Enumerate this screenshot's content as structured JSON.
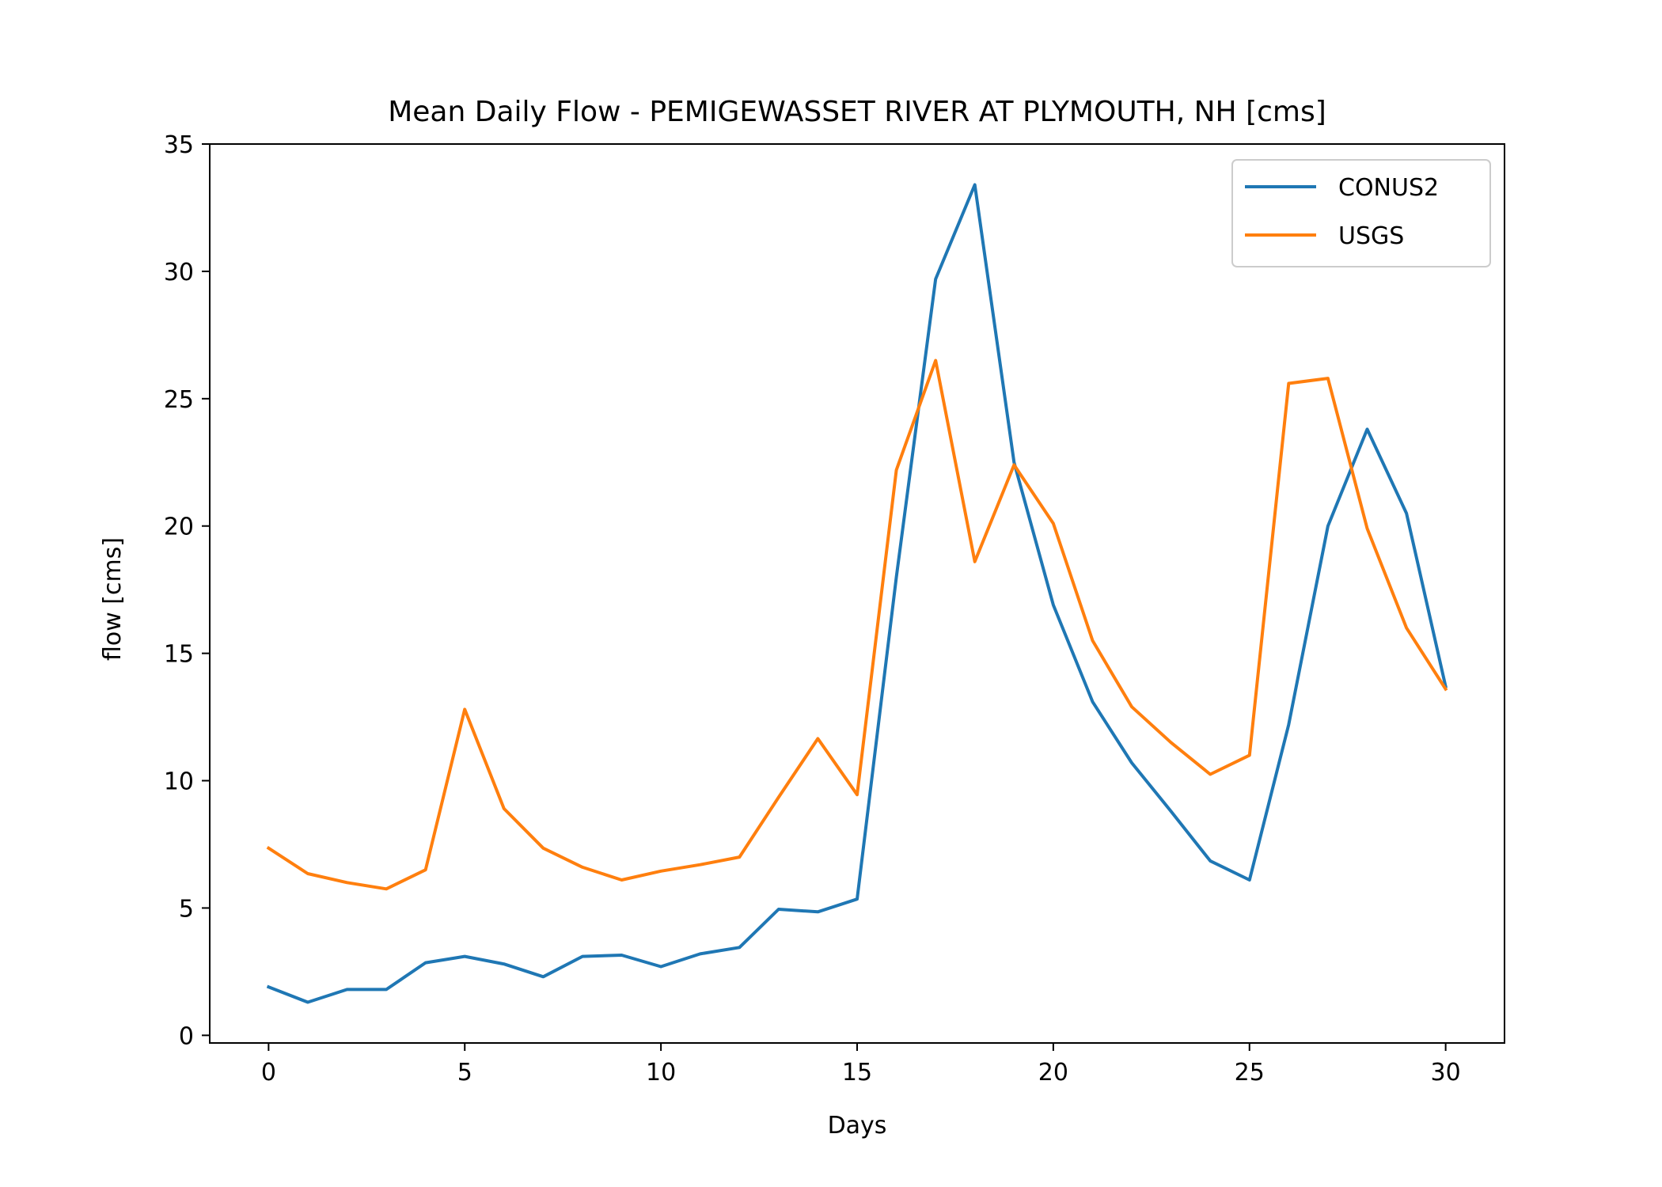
{
  "chart_data": {
    "type": "line",
    "title": "Mean Daily Flow - PEMIGEWASSET RIVER AT PLYMOUTH, NH [cms]",
    "xlabel": "Days",
    "ylabel": "flow [cms]",
    "xlim": [
      -1.5,
      31.5
    ],
    "ylim": [
      -0.3,
      35
    ],
    "xticks": [
      0,
      5,
      10,
      15,
      20,
      25,
      30
    ],
    "yticks": [
      0,
      5,
      10,
      15,
      20,
      25,
      30,
      35
    ],
    "grid": false,
    "legend_position": "top-right",
    "x": [
      0,
      1,
      2,
      3,
      4,
      5,
      6,
      7,
      8,
      9,
      10,
      11,
      12,
      13,
      14,
      15,
      16,
      17,
      18,
      19,
      20,
      21,
      22,
      23,
      24,
      25,
      26,
      27,
      28,
      29,
      30
    ],
    "series": [
      {
        "name": "CONUS2",
        "color": "#1f77b4",
        "values": [
          1.9,
          1.3,
          1.8,
          1.8,
          2.85,
          3.1,
          2.8,
          2.3,
          3.1,
          3.15,
          2.7,
          3.2,
          3.45,
          4.95,
          4.85,
          5.35,
          18.0,
          29.7,
          33.4,
          22.5,
          16.9,
          13.1,
          10.7,
          8.8,
          6.85,
          6.1,
          12.2,
          20.0,
          23.8,
          20.5,
          13.7
        ]
      },
      {
        "name": "USGS",
        "color": "#ff7f0e",
        "values": [
          7.35,
          6.35,
          6.0,
          5.75,
          6.5,
          12.8,
          8.9,
          7.35,
          6.6,
          6.1,
          6.45,
          6.7,
          7.0,
          9.35,
          11.65,
          9.45,
          22.2,
          26.5,
          18.6,
          22.4,
          20.1,
          15.5,
          12.9,
          11.5,
          10.25,
          11.0,
          25.6,
          25.8,
          19.9,
          16.0,
          13.6
        ]
      }
    ]
  }
}
